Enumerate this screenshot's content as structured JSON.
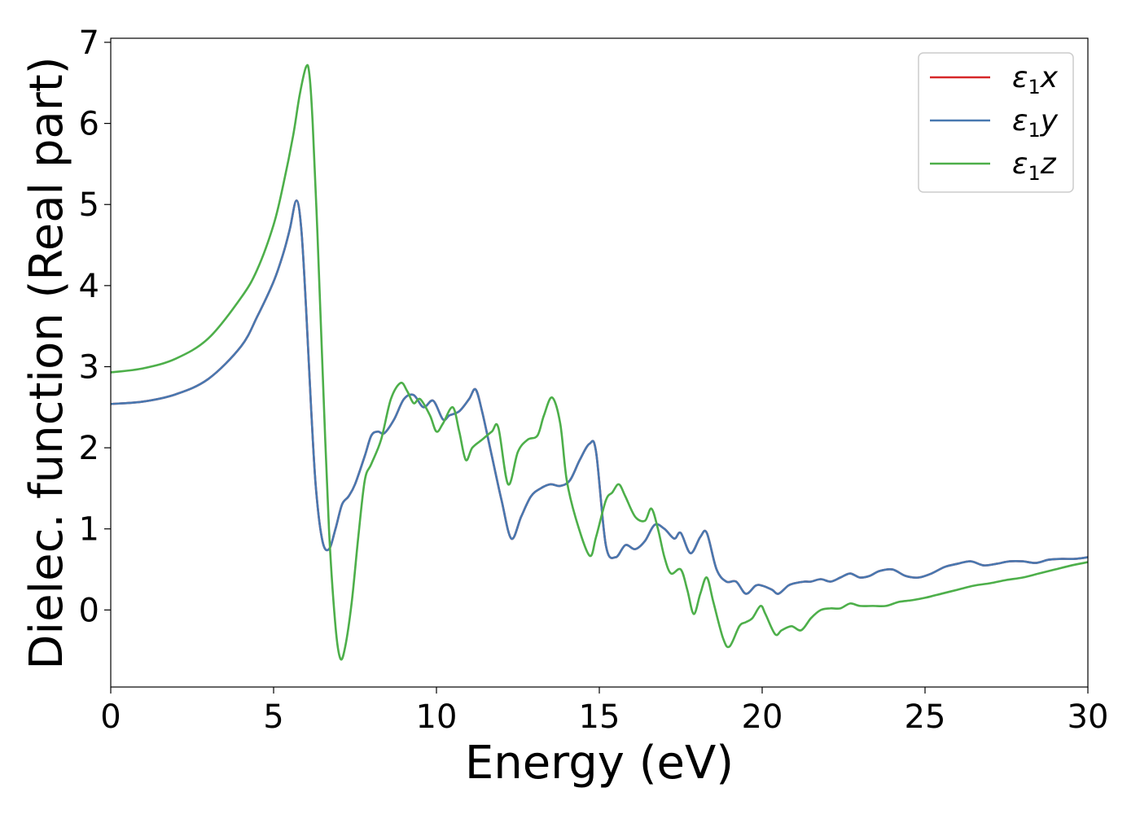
{
  "chart_data": {
    "type": "line",
    "title": "",
    "xlabel": "Energy (eV)",
    "ylabel": "Dielec. function (Real part)",
    "xlim": [
      0,
      30
    ],
    "ylim": [
      -0.95,
      7.05
    ],
    "xticks": [
      "0",
      "5",
      "10",
      "15",
      "20",
      "25",
      "30"
    ],
    "yticks": [
      "0",
      "1",
      "2",
      "3",
      "4",
      "5",
      "6",
      "7"
    ],
    "grid": false,
    "legend_position": "top-right",
    "series": [
      {
        "name": "ε₁x",
        "legend_main": "ε",
        "legend_sub": "1",
        "legend_var": "x",
        "color": "#d62728",
        "x": [
          0,
          1,
          2,
          3,
          4,
          4.5,
          5,
          5.3,
          5.5,
          5.7,
          5.85,
          6.0,
          6.15,
          6.3,
          6.5,
          6.7,
          6.9,
          7.1,
          7.3,
          7.5,
          7.8,
          8.0,
          8.2,
          8.4,
          8.7,
          9.0,
          9.3,
          9.6,
          9.9,
          10.2,
          10.4,
          10.7,
          11.0,
          11.2,
          11.4,
          11.7,
          12.0,
          12.3,
          12.6,
          12.9,
          13.2,
          13.5,
          13.8,
          14.1,
          14.4,
          14.7,
          14.9,
          15.2,
          15.5,
          15.8,
          16.1,
          16.4,
          16.7,
          17.0,
          17.3,
          17.5,
          17.8,
          18.1,
          18.3,
          18.6,
          18.9,
          19.2,
          19.5,
          19.8,
          20.0,
          20.3,
          20.5,
          20.8,
          21.0,
          21.3,
          21.5,
          21.8,
          22.1,
          22.4,
          22.7,
          23.0,
          23.3,
          23.6,
          24.0,
          24.4,
          24.8,
          25.2,
          25.6,
          26.0,
          26.4,
          26.8,
          27.2,
          27.6,
          28.0,
          28.4,
          28.8,
          29.2,
          29.6,
          30
        ],
        "y": [
          2.54,
          2.57,
          2.66,
          2.85,
          3.25,
          3.62,
          4.05,
          4.4,
          4.7,
          5.05,
          4.7,
          3.7,
          2.5,
          1.5,
          0.85,
          0.75,
          1.0,
          1.3,
          1.4,
          1.55,
          1.9,
          2.15,
          2.2,
          2.18,
          2.35,
          2.6,
          2.65,
          2.5,
          2.58,
          2.35,
          2.4,
          2.45,
          2.6,
          2.72,
          2.45,
          1.9,
          1.35,
          0.88,
          1.15,
          1.4,
          1.5,
          1.55,
          1.53,
          1.6,
          1.85,
          2.05,
          1.95,
          0.8,
          0.65,
          0.8,
          0.75,
          0.85,
          1.05,
          1.0,
          0.88,
          0.95,
          0.7,
          0.9,
          0.95,
          0.5,
          0.35,
          0.35,
          0.2,
          0.3,
          0.3,
          0.25,
          0.2,
          0.3,
          0.33,
          0.35,
          0.35,
          0.38,
          0.35,
          0.4,
          0.45,
          0.4,
          0.42,
          0.48,
          0.5,
          0.42,
          0.4,
          0.45,
          0.53,
          0.57,
          0.6,
          0.55,
          0.57,
          0.6,
          0.6,
          0.58,
          0.62,
          0.63,
          0.63,
          0.65
        ]
      },
      {
        "name": "ε₁y",
        "legend_main": "ε",
        "legend_sub": "1",
        "legend_var": "y",
        "color": "#4878b0",
        "x": [
          0,
          1,
          2,
          3,
          4,
          4.5,
          5,
          5.3,
          5.5,
          5.7,
          5.85,
          6.0,
          6.15,
          6.3,
          6.5,
          6.7,
          6.9,
          7.1,
          7.3,
          7.5,
          7.8,
          8.0,
          8.2,
          8.4,
          8.7,
          9.0,
          9.3,
          9.6,
          9.9,
          10.2,
          10.4,
          10.7,
          11.0,
          11.2,
          11.4,
          11.7,
          12.0,
          12.3,
          12.6,
          12.9,
          13.2,
          13.5,
          13.8,
          14.1,
          14.4,
          14.7,
          14.9,
          15.2,
          15.5,
          15.8,
          16.1,
          16.4,
          16.7,
          17.0,
          17.3,
          17.5,
          17.8,
          18.1,
          18.3,
          18.6,
          18.9,
          19.2,
          19.5,
          19.8,
          20.0,
          20.3,
          20.5,
          20.8,
          21.0,
          21.3,
          21.5,
          21.8,
          22.1,
          22.4,
          22.7,
          23.0,
          23.3,
          23.6,
          24.0,
          24.4,
          24.8,
          25.2,
          25.6,
          26.0,
          26.4,
          26.8,
          27.2,
          27.6,
          28.0,
          28.4,
          28.8,
          29.2,
          29.6,
          30
        ],
        "y": [
          2.54,
          2.57,
          2.66,
          2.85,
          3.25,
          3.62,
          4.05,
          4.4,
          4.7,
          5.05,
          4.7,
          3.7,
          2.5,
          1.5,
          0.85,
          0.75,
          1.0,
          1.3,
          1.4,
          1.55,
          1.9,
          2.15,
          2.2,
          2.18,
          2.35,
          2.6,
          2.65,
          2.5,
          2.58,
          2.35,
          2.4,
          2.45,
          2.6,
          2.72,
          2.45,
          1.9,
          1.35,
          0.88,
          1.15,
          1.4,
          1.5,
          1.55,
          1.53,
          1.6,
          1.85,
          2.05,
          1.95,
          0.8,
          0.65,
          0.8,
          0.75,
          0.85,
          1.05,
          1.0,
          0.88,
          0.95,
          0.7,
          0.9,
          0.95,
          0.5,
          0.35,
          0.35,
          0.2,
          0.3,
          0.3,
          0.25,
          0.2,
          0.3,
          0.33,
          0.35,
          0.35,
          0.38,
          0.35,
          0.4,
          0.45,
          0.4,
          0.42,
          0.48,
          0.5,
          0.42,
          0.4,
          0.45,
          0.53,
          0.57,
          0.6,
          0.55,
          0.57,
          0.6,
          0.6,
          0.58,
          0.62,
          0.63,
          0.63,
          0.65
        ]
      },
      {
        "name": "ε₁z",
        "legend_main": "ε",
        "legend_sub": "1",
        "legend_var": "z",
        "color": "#4daf4a",
        "x": [
          0,
          1,
          2,
          3,
          4,
          4.5,
          5,
          5.3,
          5.6,
          5.8,
          6.0,
          6.1,
          6.2,
          6.35,
          6.5,
          6.7,
          6.9,
          7.05,
          7.2,
          7.4,
          7.6,
          7.8,
          8.0,
          8.3,
          8.6,
          8.9,
          9.1,
          9.3,
          9.5,
          9.8,
          10.0,
          10.2,
          10.5,
          10.7,
          10.9,
          11.1,
          11.4,
          11.7,
          11.9,
          12.2,
          12.5,
          12.8,
          13.1,
          13.3,
          13.55,
          13.8,
          14.0,
          14.3,
          14.7,
          14.9,
          15.2,
          15.4,
          15.6,
          15.8,
          16.1,
          16.4,
          16.6,
          16.8,
          17.0,
          17.2,
          17.5,
          17.7,
          17.9,
          18.1,
          18.3,
          18.5,
          18.8,
          19.0,
          19.3,
          19.5,
          19.7,
          19.95,
          20.1,
          20.4,
          20.6,
          20.9,
          21.2,
          21.5,
          21.8,
          22.1,
          22.4,
          22.7,
          23.0,
          23.4,
          23.8,
          24.2,
          24.6,
          25.0,
          25.5,
          26.0,
          26.5,
          27.0,
          27.5,
          28.0,
          28.5,
          29.0,
          29.5,
          30
        ],
        "y": [
          2.93,
          2.98,
          3.1,
          3.35,
          3.85,
          4.2,
          4.75,
          5.25,
          5.85,
          6.35,
          6.7,
          6.6,
          6.0,
          4.6,
          3.0,
          1.0,
          -0.2,
          -0.6,
          -0.45,
          0.1,
          0.9,
          1.6,
          1.8,
          2.1,
          2.6,
          2.8,
          2.7,
          2.55,
          2.6,
          2.4,
          2.2,
          2.3,
          2.5,
          2.2,
          1.85,
          2.0,
          2.1,
          2.2,
          2.25,
          1.55,
          1.95,
          2.1,
          2.15,
          2.4,
          2.62,
          2.3,
          1.6,
          1.1,
          0.67,
          0.9,
          1.35,
          1.45,
          1.55,
          1.4,
          1.15,
          1.1,
          1.25,
          1.0,
          0.65,
          0.45,
          0.5,
          0.25,
          -0.05,
          0.2,
          0.4,
          0.1,
          -0.35,
          -0.45,
          -0.2,
          -0.15,
          -0.1,
          0.05,
          -0.05,
          -0.3,
          -0.25,
          -0.2,
          -0.25,
          -0.1,
          0.0,
          0.02,
          0.02,
          0.08,
          0.05,
          0.05,
          0.05,
          0.1,
          0.12,
          0.15,
          0.2,
          0.25,
          0.3,
          0.33,
          0.37,
          0.4,
          0.45,
          0.5,
          0.55,
          0.59
        ]
      }
    ]
  }
}
